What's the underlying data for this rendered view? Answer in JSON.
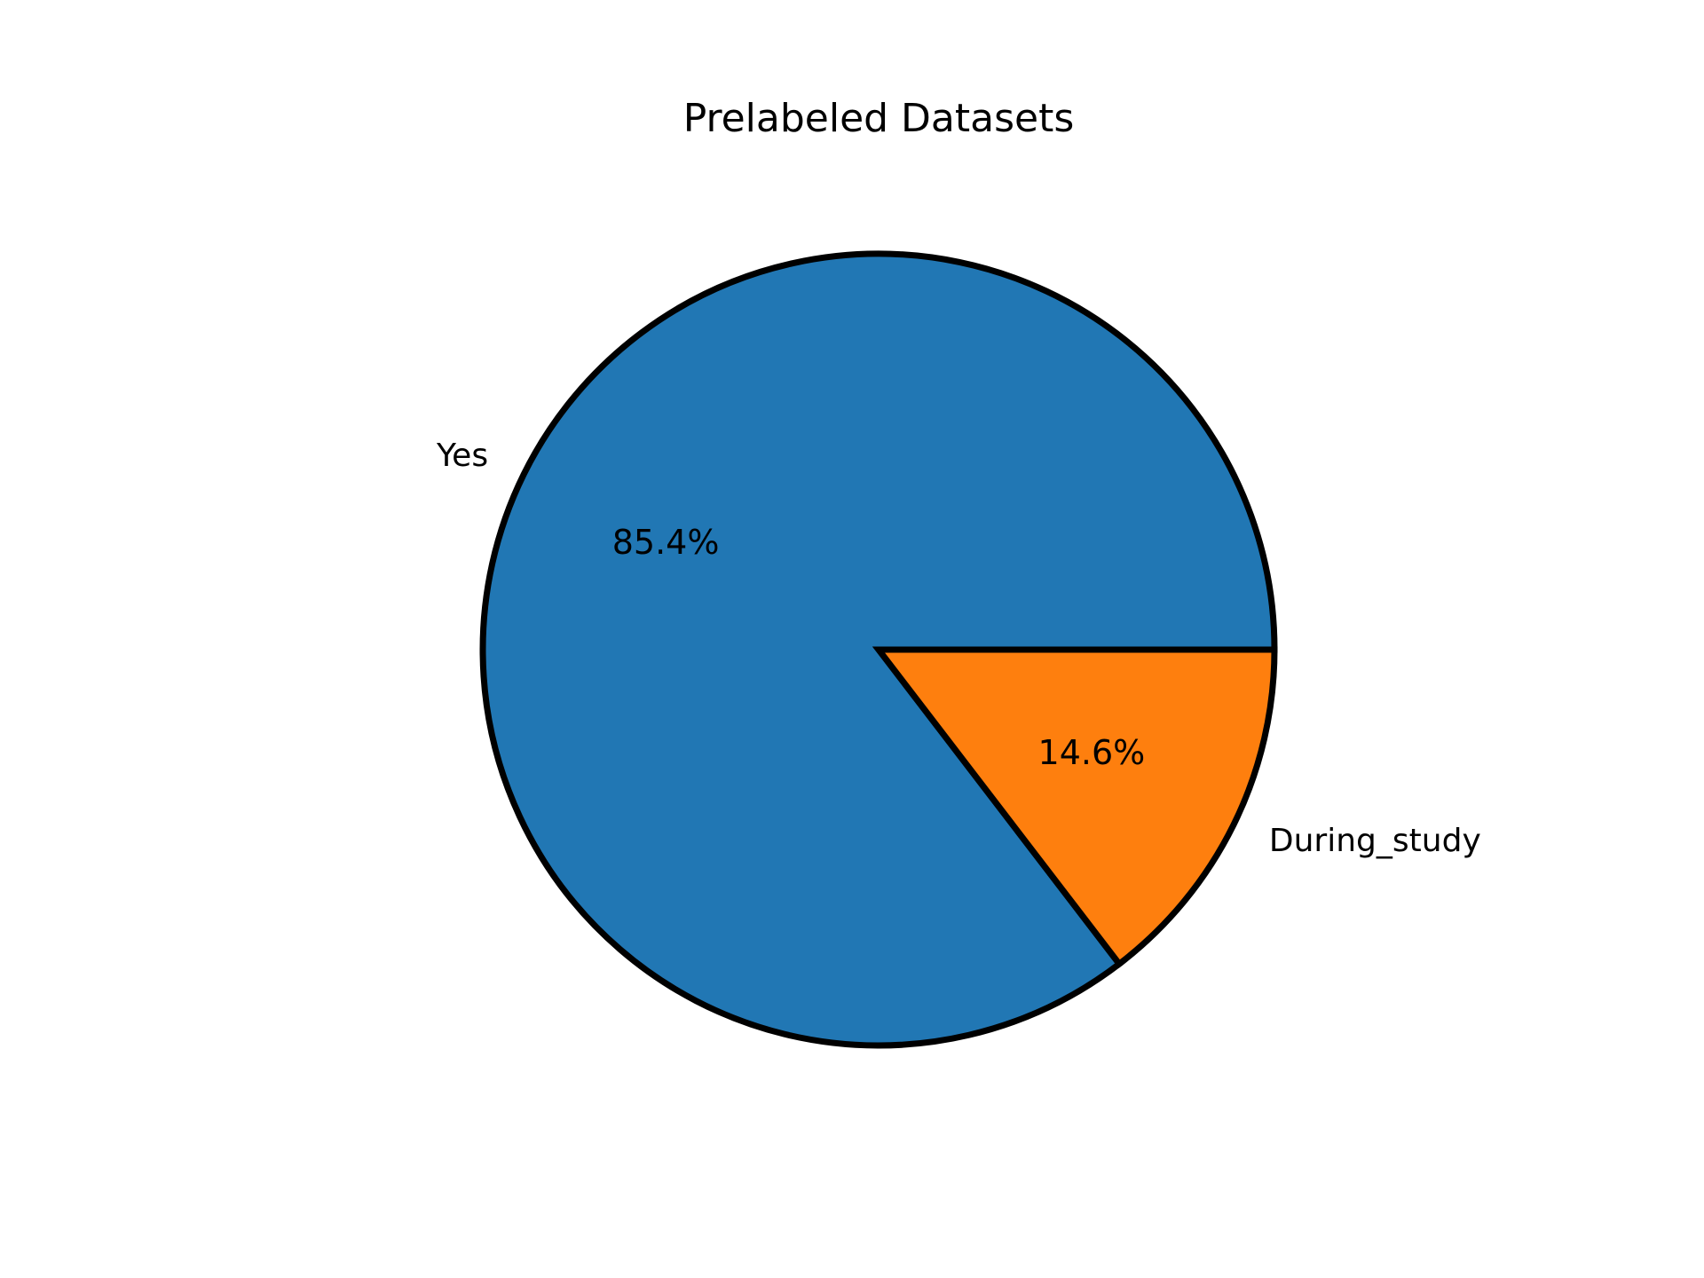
{
  "chart_data": {
    "type": "pie",
    "title": "Prelabeled Datasets",
    "labels": [
      "Yes",
      "During_study"
    ],
    "values": [
      85.4,
      14.6
    ],
    "value_labels": [
      "85.4%",
      "14.6%"
    ],
    "colors": [
      "#2177b4",
      "#fe7f0e"
    ],
    "edge_color": "#000000",
    "start_angle_deg": 0,
    "direction": "counterclockwise"
  }
}
